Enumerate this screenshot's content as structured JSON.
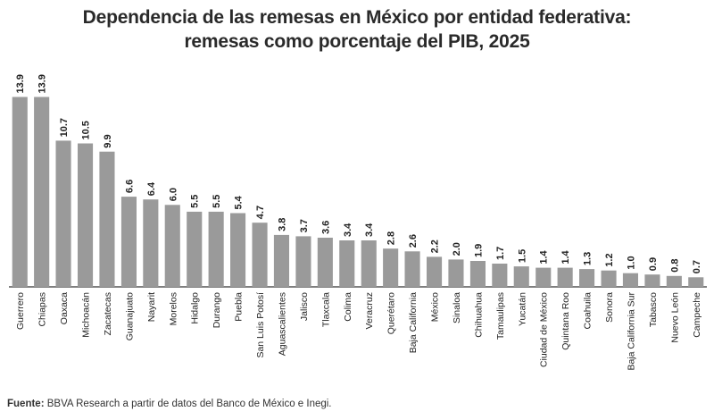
{
  "chart_data": {
    "type": "bar",
    "title": "Dependencia de las remesas en México por entidad federativa:",
    "subtitle": "remesas como porcentaje del PIB, 2025",
    "xlabel": "",
    "ylabel": "",
    "ylim": [
      0,
      14
    ],
    "grid": false,
    "legend": "none",
    "categories": [
      "Guerrero",
      "Chiapas",
      "Oaxaca",
      "Michoacán",
      "Zacatecas",
      "Guanajuato",
      "Nayarit",
      "Morelos",
      "Hidalgo",
      "Durango",
      "Puebla",
      "San Luis Potosí",
      "Aguascalientes",
      "Jalisco",
      "Tlaxcala",
      "Colima",
      "Veracruz",
      "Querétaro",
      "Baja California",
      "México",
      "Sinaloa",
      "Chihuahua",
      "Tamaulipas",
      "Yucatán",
      "Ciudad de México",
      "Quintana Roo",
      "Coahuila",
      "Sonora",
      "Baja California Sur",
      "Tabasco",
      "Nuevo León",
      "Campeche"
    ],
    "values": [
      13.9,
      13.9,
      10.7,
      10.5,
      9.9,
      6.6,
      6.4,
      6.0,
      5.5,
      5.5,
      5.4,
      4.7,
      3.8,
      3.7,
      3.6,
      3.4,
      3.4,
      2.8,
      2.6,
      2.2,
      2.0,
      1.9,
      1.7,
      1.5,
      1.4,
      1.4,
      1.3,
      1.2,
      1.0,
      0.9,
      0.8,
      0.7
    ],
    "value_labels": [
      "13.9",
      "13.9",
      "10.7",
      "10.5",
      "9.9",
      "6.6",
      "6.4",
      "6.0",
      "5.5",
      "5.5",
      "5.4",
      "4.7",
      "3.8",
      "3.7",
      "3.6",
      "3.4",
      "3.4",
      "2.8",
      "2.6",
      "2.2",
      "2.0",
      "1.9",
      "1.7",
      "1.5",
      "1.4",
      "1.4",
      "1.3",
      "1.2",
      "1.0",
      "0.9",
      "0.8",
      "0.7"
    ],
    "colors": {
      "bar": "#9a9a9a",
      "axis": "#333333",
      "text": "#222222"
    }
  },
  "source": {
    "lead": "Fuente:",
    "text": " BBVA Research a partir de datos del Banco de México e Inegi."
  }
}
